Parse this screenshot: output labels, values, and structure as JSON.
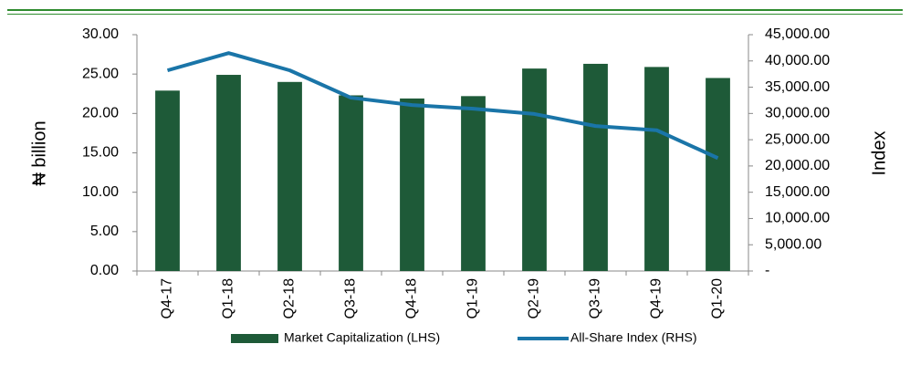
{
  "chart_data": {
    "type": "bar",
    "categories": [
      "Q4-17",
      "Q1-18",
      "Q2-18",
      "Q3-18",
      "Q4-18",
      "Q1-19",
      "Q2-19",
      "Q3-19",
      "Q4-19",
      "Q1-20"
    ],
    "series": [
      {
        "name": "Market Capitalization (LHS)",
        "color": "#1e5a38",
        "type": "bar",
        "values": [
          22.9,
          24.9,
          24.0,
          22.3,
          21.9,
          22.2,
          25.7,
          26.3,
          25.9,
          24.5
        ]
      },
      {
        "name": "All-Share Index (RHS)",
        "color": "#1a75a8",
        "type": "line",
        "axis": "y2",
        "values": [
          38200,
          41500,
          38200,
          33000,
          31600,
          30900,
          29900,
          27600,
          26800,
          21500
        ]
      }
    ],
    "ylabel": "₦ billion",
    "y2label": "Index",
    "ylim": [
      0,
      30
    ],
    "yticks": [
      {
        "value": 0,
        "label": "0.00"
      },
      {
        "value": 5,
        "label": "5.00"
      },
      {
        "value": 10,
        "label": "10.00"
      },
      {
        "value": 15,
        "label": "15.00"
      },
      {
        "value": 20,
        "label": "20.00"
      },
      {
        "value": 25,
        "label": "25.00"
      },
      {
        "value": 30,
        "label": "30.00"
      }
    ],
    "y2lim": [
      0,
      45000
    ],
    "y2ticks": [
      {
        "value": 0,
        "label": "-"
      },
      {
        "value": 5000,
        "label": "5,000.00"
      },
      {
        "value": 10000,
        "label": "10,000.00"
      },
      {
        "value": 15000,
        "label": "15,000.00"
      },
      {
        "value": 20000,
        "label": "20,000.00"
      },
      {
        "value": 25000,
        "label": "25,000.00"
      },
      {
        "value": 30000,
        "label": "30,000.00"
      },
      {
        "value": 35000,
        "label": "35,000.00"
      },
      {
        "value": 40000,
        "label": "40,000.00"
      },
      {
        "value": 45000,
        "label": "45,000.00"
      }
    ],
    "grid": false
  }
}
